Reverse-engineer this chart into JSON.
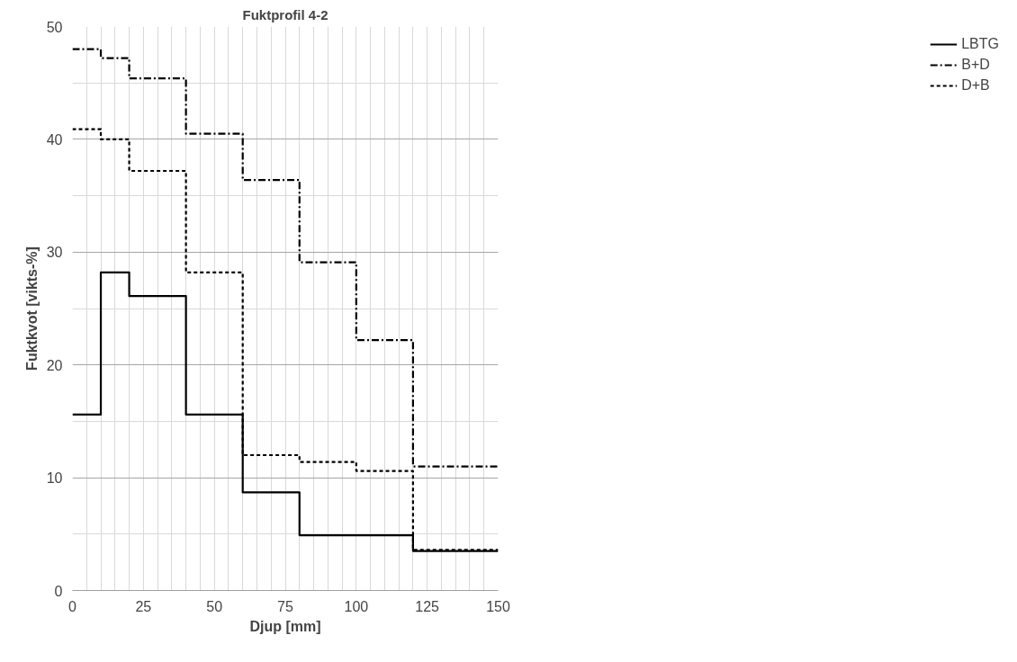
{
  "chart_data": {
    "type": "step",
    "title": "Fuktprofil 4-2",
    "xlabel": "Djup [mm]",
    "ylabel": "Fuktkvot [vikts-%]",
    "x": [
      0,
      10,
      20,
      40,
      60,
      80,
      100,
      120,
      150
    ],
    "series": [
      {
        "name": "LBTG",
        "color": "#000000",
        "line_style": "solid",
        "values": [
          15.6,
          28.2,
          26.1,
          15.6,
          8.7,
          4.9,
          4.9,
          3.5,
          3.5
        ]
      },
      {
        "name": "B+D",
        "color": "#000000",
        "line_style": "dashdot",
        "values": [
          48.0,
          47.2,
          45.4,
          40.5,
          36.4,
          29.1,
          22.2,
          11.0,
          11.0
        ]
      },
      {
        "name": "D+B",
        "color": "#000000",
        "line_style": "dashed",
        "values": [
          40.9,
          40.0,
          37.2,
          28.2,
          12.0,
          11.4,
          10.6,
          3.6,
          3.6
        ]
      }
    ],
    "xlim": [
      0,
      150
    ],
    "ylim": [
      0,
      50
    ],
    "xticks": [
      0,
      25,
      50,
      75,
      100,
      125,
      150
    ],
    "yticks": [
      0,
      10,
      20,
      30,
      40,
      50
    ],
    "grid": true,
    "legend": "right"
  }
}
